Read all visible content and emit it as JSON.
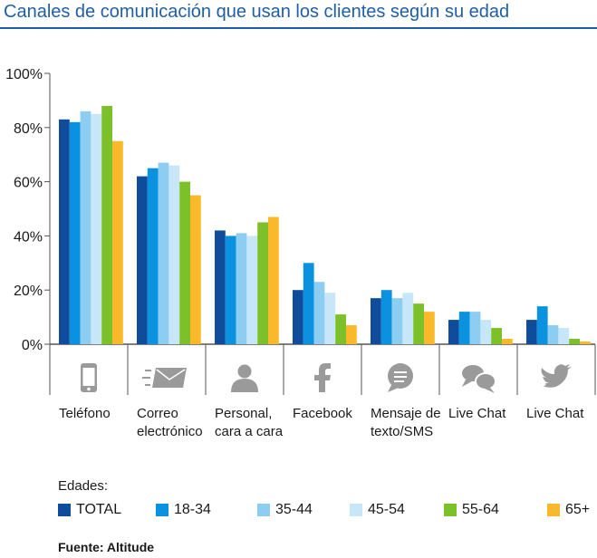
{
  "title": "Canales de comunicación que usan los clientes según su edad",
  "legend_title": "Edades:",
  "source": "Fuente: Altitude",
  "colors": {
    "title": "#1f5fa8",
    "axis": "#555555",
    "icon": "#9a9a9a"
  },
  "chart_data": {
    "type": "bar",
    "title": "Canales de comunicación que usan los clientes según su edad",
    "xlabel": "",
    "ylabel": "",
    "ylim": [
      0,
      100
    ],
    "yticks": [
      "0%",
      "20%",
      "40%",
      "60%",
      "80%",
      "100%"
    ],
    "grid": false,
    "legend_position": "bottom",
    "categories": [
      "Teléfono",
      "Correo electrónico",
      "Personal, cara a cara",
      "Facebook",
      "Mensaje de texto/SMS",
      "Live Chat",
      "Live Chat"
    ],
    "category_lines": [
      [
        "Teléfono"
      ],
      [
        "Correo",
        "electrónico"
      ],
      [
        "Personal,",
        "cara a cara"
      ],
      [
        "Facebook"
      ],
      [
        "Mensaje de",
        "texto/SMS"
      ],
      [
        "Live Chat"
      ],
      [
        "Live Chat"
      ]
    ],
    "category_icons": [
      "phone-icon",
      "email-icon",
      "person-icon",
      "facebook-icon",
      "sms-icon",
      "chat-icon",
      "twitter-icon"
    ],
    "series": [
      {
        "name": "TOTAL",
        "color": "#0f4c9c",
        "values": [
          83,
          62,
          42,
          20,
          17,
          9,
          9
        ]
      },
      {
        "name": "18-34",
        "color": "#0a91e0",
        "values": [
          82,
          65,
          40,
          30,
          20,
          12,
          14
        ]
      },
      {
        "name": "35-44",
        "color": "#8dcdf2",
        "values": [
          86,
          67,
          41,
          23,
          17,
          12,
          7
        ]
      },
      {
        "name": "45-54",
        "color": "#c7e7f9",
        "values": [
          85,
          66,
          40,
          19,
          19,
          9,
          6
        ]
      },
      {
        "name": "55-64",
        "color": "#7cc02a",
        "values": [
          88,
          60,
          45,
          11,
          15,
          6,
          2
        ]
      },
      {
        "name": "65+",
        "color": "#f9b92a",
        "values": [
          75,
          55,
          47,
          7,
          12,
          2,
          1
        ]
      }
    ]
  }
}
